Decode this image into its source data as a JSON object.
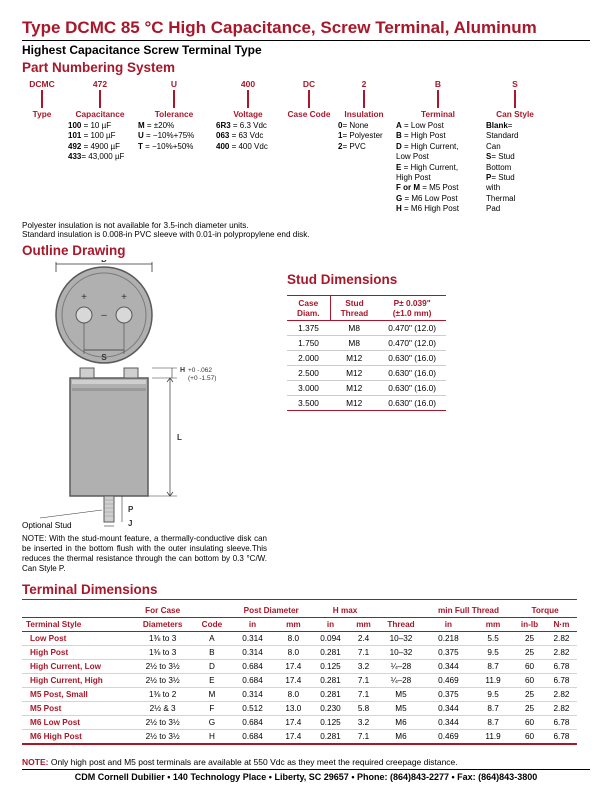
{
  "title": "Type DCMC 85 °C High Capacitance, Screw Terminal, Aluminum",
  "subtitle": "Highest Capacitance Screw Terminal Type",
  "headings": {
    "pns": "Part Numbering System",
    "outline": "Outline Drawing",
    "stud": "Stud Dimensions",
    "term": "Terminal Dimensions"
  },
  "pns": {
    "cols": [
      {
        "label": "DCMC",
        "hdr": "Type",
        "body": ""
      },
      {
        "label": "472",
        "hdr": "Capacitance",
        "body": "<b>100</b> = 10 µF\n<b>101</b> = 100 µF\n<b>492</b> = 4900 µF\n<b>433</b>= 43,000 µF"
      },
      {
        "label": "U",
        "hdr": "Tolerance",
        "body": "<b>M</b> = ±20%\n<b>U</b> = −10%+75%\n<b>T</b> = −10%+50%"
      },
      {
        "label": "400",
        "hdr": "Voltage",
        "body": "<b>6R3</b> = 6.3 Vdc\n<b>063</b> = 63 Vdc\n<b>400</b> = 400 Vdc"
      },
      {
        "label": "DC",
        "hdr": "Case Code",
        "body": ""
      },
      {
        "label": "2",
        "hdr": "Insulation",
        "body": "<b>0</b>= None\n<b>1</b>= Polyester\n<b>2</b>= PVC"
      },
      {
        "label": "B",
        "hdr": "Terminal",
        "body": "<b>A</b> = Low Post\n<b>B</b> = High Post\n<b>D</b> = High Current,\n      Low Post\n<b>E</b> = High Current,\n      High Post\n<b>F or M</b> = M5 Post\n<b>G</b> = M6 Low Post\n<b>H</b> = M6 High Post"
      },
      {
        "label": "S",
        "hdr": "Can Style",
        "body": "<b>Blank</b>=\n   Standard\n   Can\n<b>S</b>= Stud\n   Bottom\n<b>P</b>= Stud\n   with\n   Thermal\n   Pad"
      }
    ]
  },
  "notes": {
    "line1": "Polyester insulation is not available for 3.5-inch diameter units.",
    "line2": "Standard insulation is 0.008-in PVC sleeve with 0.01-in polypropylene end disk."
  },
  "drawing": {
    "optional_stud": "Optional Stud",
    "h_anno": "H +0 -.062\n   (+0 -1.57)",
    "note": "NOTE: With the stud-mount feature, a thermally-conductive disk can be inserted in the bottom flush with the outer insulating sleeve.This reduces the thermal resistance through the can bottom by 0.3 °C/W. Can Style P."
  },
  "stud": {
    "headers": [
      "Case\nDiam.",
      "Stud\nThread",
      "P± 0.039\"\n(±1.0 mm)"
    ],
    "rows": [
      [
        "1.375",
        "M8",
        "0.470\" (12.0)"
      ],
      [
        "1.750",
        "M8",
        "0.470\" (12.0)"
      ],
      [
        "2.000",
        "M12",
        "0.630\" (16.0)"
      ],
      [
        "2.500",
        "M12",
        "0.630\" (16.0)"
      ],
      [
        "3.000",
        "M12",
        "0.630\" (16.0)"
      ],
      [
        "3.500",
        "M12",
        "0.630\" (16.0)"
      ]
    ]
  },
  "term": {
    "group_headers": [
      "",
      "For Case",
      "",
      "Post Diameter",
      "H max",
      "",
      "min Full Thread",
      "Torque"
    ],
    "sub_headers": [
      "Terminal Style",
      "Diameters",
      "Code",
      "in",
      "mm",
      "in",
      "mm",
      "Thread",
      "in",
      "mm",
      "in-lb",
      "N·m"
    ],
    "rows": [
      [
        "Low Post",
        "1⅜ to 3",
        "A",
        "0.314",
        "8.0",
        "0.094",
        "2.4",
        "10–32",
        "0.218",
        "5.5",
        "25",
        "2.82"
      ],
      [
        "High Post",
        "1⅜ to 3",
        "B",
        "0.314",
        "8.0",
        "0.281",
        "7.1",
        "10–32",
        "0.375",
        "9.5",
        "25",
        "2.82"
      ],
      [
        "High Current, Low",
        "2½ to 3½",
        "D",
        "0.684",
        "17.4",
        "0.125",
        "3.2",
        "¼–28",
        "0.344",
        "8.7",
        "60",
        "6.78"
      ],
      [
        "High Current, High",
        "2½ to 3½",
        "E",
        "0.684",
        "17.4",
        "0.281",
        "7.1",
        "¼–28",
        "0.469",
        "11.9",
        "60",
        "6.78"
      ],
      [
        "M5 Post, Small",
        "1⅜ to 2",
        "M",
        "0.314",
        "8.0",
        "0.281",
        "7.1",
        "M5",
        "0.375",
        "9.5",
        "25",
        "2.82"
      ],
      [
        "M5 Post",
        "2½ & 3",
        "F",
        "0.512",
        "13.0",
        "0.230",
        "5.8",
        "M5",
        "0.344",
        "8.7",
        "25",
        "2.82"
      ],
      [
        "M6 Low Post",
        "2½ to 3½",
        "G",
        "0.684",
        "17.4",
        "0.125",
        "3.2",
        "M6",
        "0.344",
        "8.7",
        "60",
        "6.78"
      ],
      [
        "M6 High Post",
        "2½ to 3½",
        "H",
        "0.684",
        "17.4",
        "0.281",
        "7.1",
        "M6",
        "0.469",
        "11.9",
        "60",
        "6.78"
      ]
    ]
  },
  "footnote": "Only high post and M5 post terminals are available at 550 Vdc as they meet the required creepage distance.",
  "footer": "CDM Cornell Dubilier • 140 Technology Place • Liberty, SC 29657 • Phone: (864)843-2277 • Fax: (864)843-3800"
}
